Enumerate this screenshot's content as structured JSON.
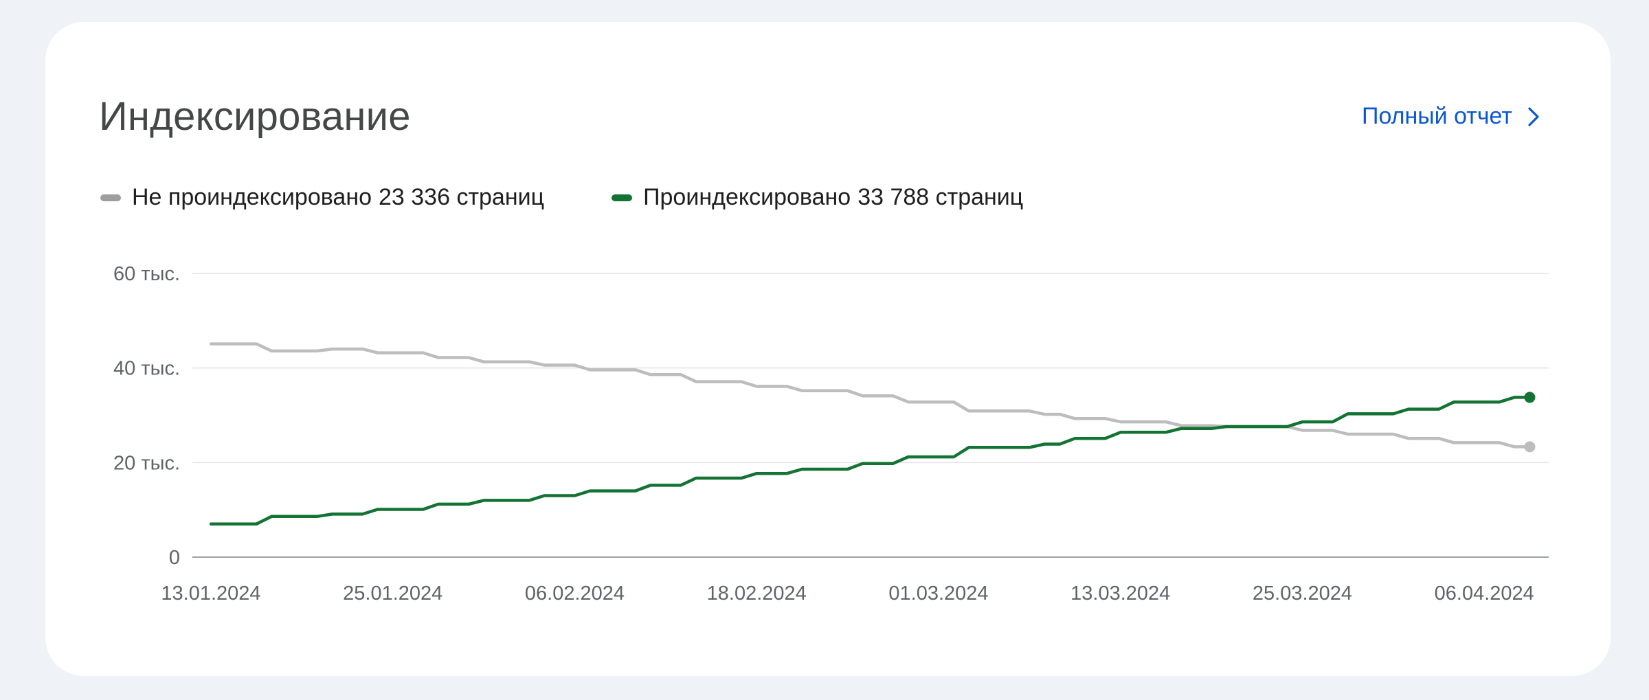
{
  "header": {
    "title": "Индексирование",
    "report_link": "Полный отчет"
  },
  "legend": [
    {
      "label": "Не проиндексировано",
      "value": "23 336 страниц",
      "color": "#9e9e9e"
    },
    {
      "label": "Проиндексировано",
      "value": "33 788 страниц",
      "color": "#137333"
    }
  ],
  "icons": {
    "report_arrow": "chevron-right-icon"
  },
  "chart_data": {
    "type": "line",
    "title": "Индексирование",
    "xlabel": "",
    "ylabel": "",
    "ylim": [
      0,
      60000
    ],
    "yticks": [
      0,
      20000,
      40000,
      60000
    ],
    "ytick_labels": [
      "0",
      "20 тыс.",
      "40 тыс.",
      "60 тыс."
    ],
    "xlim": [
      "2024-01-13",
      "2024-04-10"
    ],
    "xtick_labels": [
      "13.01.2024",
      "25.01.2024",
      "06.02.2024",
      "18.02.2024",
      "01.03.2024",
      "13.03.2024",
      "25.03.2024",
      "06.04.2024"
    ],
    "xtick_dates": [
      "2024-01-13",
      "2024-01-25",
      "2024-02-06",
      "2024-02-18",
      "2024-03-01",
      "2024-03-13",
      "2024-03-25",
      "2024-04-06"
    ],
    "grid": true,
    "legend_position": "top-left",
    "series": [
      {
        "name": "Не проиндексировано",
        "color": "#bdbdbd",
        "points": [
          [
            "2024-01-13",
            45100
          ],
          [
            "2024-01-16",
            45100
          ],
          [
            "2024-01-17",
            43600
          ],
          [
            "2024-01-20",
            43600
          ],
          [
            "2024-01-21",
            44000
          ],
          [
            "2024-01-23",
            44000
          ],
          [
            "2024-01-24",
            43200
          ],
          [
            "2024-01-27",
            43200
          ],
          [
            "2024-01-28",
            42200
          ],
          [
            "2024-01-30",
            42200
          ],
          [
            "2024-01-31",
            41300
          ],
          [
            "2024-02-03",
            41300
          ],
          [
            "2024-02-04",
            40600
          ],
          [
            "2024-02-06",
            40600
          ],
          [
            "2024-02-07",
            39600
          ],
          [
            "2024-02-10",
            39600
          ],
          [
            "2024-02-11",
            38600
          ],
          [
            "2024-02-13",
            38600
          ],
          [
            "2024-02-14",
            37100
          ],
          [
            "2024-02-17",
            37100
          ],
          [
            "2024-02-18",
            36100
          ],
          [
            "2024-02-20",
            36100
          ],
          [
            "2024-02-21",
            35200
          ],
          [
            "2024-02-24",
            35200
          ],
          [
            "2024-02-25",
            34100
          ],
          [
            "2024-02-27",
            34100
          ],
          [
            "2024-02-28",
            32800
          ],
          [
            "2024-03-02",
            32800
          ],
          [
            "2024-03-03",
            30900
          ],
          [
            "2024-03-07",
            30900
          ],
          [
            "2024-03-08",
            30200
          ],
          [
            "2024-03-09",
            30200
          ],
          [
            "2024-03-10",
            29300
          ],
          [
            "2024-03-12",
            29300
          ],
          [
            "2024-03-13",
            28600
          ],
          [
            "2024-03-16",
            28600
          ],
          [
            "2024-03-17",
            27800
          ],
          [
            "2024-03-19",
            27800
          ],
          [
            "2024-03-20",
            27600
          ],
          [
            "2024-03-24",
            27600
          ],
          [
            "2024-03-25",
            26800
          ],
          [
            "2024-03-27",
            26800
          ],
          [
            "2024-03-28",
            26000
          ],
          [
            "2024-03-31",
            26000
          ],
          [
            "2024-04-01",
            25100
          ],
          [
            "2024-04-03",
            25100
          ],
          [
            "2024-04-04",
            24200
          ],
          [
            "2024-04-07",
            24200
          ],
          [
            "2024-04-08",
            23336
          ],
          [
            "2024-04-09",
            23336
          ]
        ]
      },
      {
        "name": "Проиндексировано",
        "color": "#137333",
        "points": [
          [
            "2024-01-13",
            7000
          ],
          [
            "2024-01-16",
            7000
          ],
          [
            "2024-01-17",
            8600
          ],
          [
            "2024-01-20",
            8600
          ],
          [
            "2024-01-21",
            9100
          ],
          [
            "2024-01-23",
            9100
          ],
          [
            "2024-01-24",
            10100
          ],
          [
            "2024-01-27",
            10100
          ],
          [
            "2024-01-28",
            11200
          ],
          [
            "2024-01-30",
            11200
          ],
          [
            "2024-01-31",
            12000
          ],
          [
            "2024-02-03",
            12000
          ],
          [
            "2024-02-04",
            13000
          ],
          [
            "2024-02-06",
            13000
          ],
          [
            "2024-02-07",
            14000
          ],
          [
            "2024-02-10",
            14000
          ],
          [
            "2024-02-11",
            15200
          ],
          [
            "2024-02-13",
            15200
          ],
          [
            "2024-02-14",
            16700
          ],
          [
            "2024-02-17",
            16700
          ],
          [
            "2024-02-18",
            17700
          ],
          [
            "2024-02-20",
            17700
          ],
          [
            "2024-02-21",
            18600
          ],
          [
            "2024-02-24",
            18600
          ],
          [
            "2024-02-25",
            19800
          ],
          [
            "2024-02-27",
            19800
          ],
          [
            "2024-02-28",
            21200
          ],
          [
            "2024-03-02",
            21200
          ],
          [
            "2024-03-03",
            23200
          ],
          [
            "2024-03-07",
            23200
          ],
          [
            "2024-03-08",
            23900
          ],
          [
            "2024-03-09",
            23900
          ],
          [
            "2024-03-10",
            25100
          ],
          [
            "2024-03-12",
            25100
          ],
          [
            "2024-03-13",
            26400
          ],
          [
            "2024-03-16",
            26400
          ],
          [
            "2024-03-17",
            27200
          ],
          [
            "2024-03-19",
            27200
          ],
          [
            "2024-03-20",
            27600
          ],
          [
            "2024-03-24",
            27600
          ],
          [
            "2024-03-25",
            28600
          ],
          [
            "2024-03-27",
            28600
          ],
          [
            "2024-03-28",
            30300
          ],
          [
            "2024-03-31",
            30300
          ],
          [
            "2024-04-01",
            31300
          ],
          [
            "2024-04-03",
            31300
          ],
          [
            "2024-04-04",
            32800
          ],
          [
            "2024-04-07",
            32800
          ],
          [
            "2024-04-08",
            33788
          ],
          [
            "2024-04-09",
            33788
          ]
        ]
      }
    ]
  }
}
